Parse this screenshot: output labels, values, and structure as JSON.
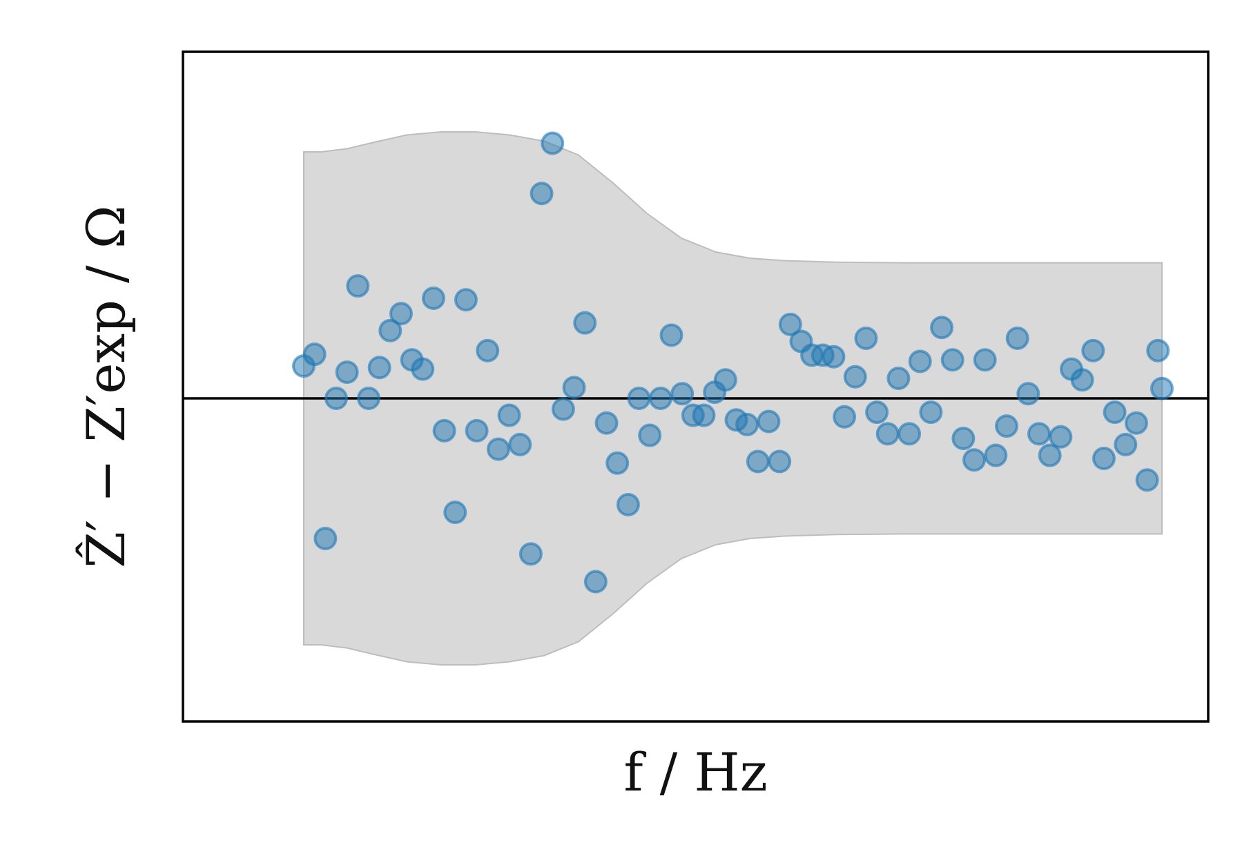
{
  "chart_data": {
    "type": "scatter",
    "xlabel": "f / Hz",
    "ylabel": "Ẑ′ − Z′exp / Ω",
    "axes_ticks_visible": false,
    "grid": false,
    "xlim": [
      0,
      100
    ],
    "ylim": [
      -1.0,
      1.0
    ],
    "zero_line": 0,
    "band": {
      "description_visible": false,
      "upper": [
        [
          0,
          0.8
        ],
        [
          2,
          0.8
        ],
        [
          5,
          0.81
        ],
        [
          8,
          0.83
        ],
        [
          12,
          0.855
        ],
        [
          16,
          0.865
        ],
        [
          20,
          0.865
        ],
        [
          24,
          0.855
        ],
        [
          28,
          0.835
        ],
        [
          32,
          0.79
        ],
        [
          36,
          0.7
        ],
        [
          40,
          0.6
        ],
        [
          44,
          0.52
        ],
        [
          48,
          0.475
        ],
        [
          52,
          0.455
        ],
        [
          56,
          0.447
        ],
        [
          62,
          0.442
        ],
        [
          70,
          0.44
        ],
        [
          80,
          0.44
        ],
        [
          90,
          0.44
        ],
        [
          100,
          0.44
        ]
      ],
      "lower": [
        [
          0,
          -0.8
        ],
        [
          2,
          -0.8
        ],
        [
          5,
          -0.81
        ],
        [
          8,
          -0.83
        ],
        [
          12,
          -0.855
        ],
        [
          16,
          -0.865
        ],
        [
          20,
          -0.865
        ],
        [
          24,
          -0.855
        ],
        [
          28,
          -0.835
        ],
        [
          32,
          -0.79
        ],
        [
          36,
          -0.7
        ],
        [
          40,
          -0.6
        ],
        [
          44,
          -0.52
        ],
        [
          48,
          -0.475
        ],
        [
          52,
          -0.455
        ],
        [
          56,
          -0.447
        ],
        [
          62,
          -0.442
        ],
        [
          70,
          -0.44
        ],
        [
          80,
          -0.44
        ],
        [
          90,
          -0.44
        ],
        [
          100,
          -0.44
        ]
      ]
    },
    "series": [
      {
        "color": "#1f77b4",
        "points": [
          [
            0,
            0.105
          ],
          [
            1.26,
            0.143
          ],
          [
            2.52,
            -0.455
          ],
          [
            3.78,
            0.0
          ],
          [
            5.04,
            0.085
          ],
          [
            6.3,
            0.365
          ],
          [
            7.56,
            0.0
          ],
          [
            8.82,
            0.1
          ],
          [
            10.08,
            0.22
          ],
          [
            11.34,
            0.275
          ],
          [
            12.6,
            0.125
          ],
          [
            13.86,
            0.095
          ],
          [
            15.12,
            0.325
          ],
          [
            16.38,
            -0.105
          ],
          [
            17.64,
            -0.37
          ],
          [
            18.9,
            0.32
          ],
          [
            20.16,
            -0.105
          ],
          [
            21.42,
            0.155
          ],
          [
            22.68,
            -0.165
          ],
          [
            23.94,
            -0.055
          ],
          [
            25.2,
            -0.15
          ],
          [
            26.46,
            -0.505
          ],
          [
            27.72,
            0.665
          ],
          [
            28.98,
            0.828
          ],
          [
            30.24,
            -0.035
          ],
          [
            31.5,
            0.035
          ],
          [
            32.76,
            0.245
          ],
          [
            34.02,
            -0.595
          ],
          [
            35.28,
            -0.08
          ],
          [
            36.54,
            -0.21
          ],
          [
            37.8,
            -0.345
          ],
          [
            39.06,
            0.0
          ],
          [
            40.32,
            -0.12
          ],
          [
            41.58,
            0.0
          ],
          [
            42.84,
            0.205
          ],
          [
            44.1,
            0.015
          ],
          [
            45.36,
            -0.055
          ],
          [
            46.62,
            -0.055
          ],
          [
            47.88,
            0.02
          ],
          [
            49.14,
            0.06
          ],
          [
            50.4,
            -0.07
          ],
          [
            51.66,
            -0.085
          ],
          [
            52.92,
            -0.205
          ],
          [
            54.18,
            -0.075
          ],
          [
            55.44,
            -0.205
          ],
          [
            56.7,
            0.24
          ],
          [
            57.96,
            0.185
          ],
          [
            59.22,
            0.14
          ],
          [
            60.48,
            0.14
          ],
          [
            61.74,
            0.135
          ],
          [
            63.0,
            -0.06
          ],
          [
            64.26,
            0.07
          ],
          [
            65.52,
            0.195
          ],
          [
            66.78,
            -0.045
          ],
          [
            68.04,
            -0.115
          ],
          [
            69.3,
            0.065
          ],
          [
            70.56,
            -0.115
          ],
          [
            71.82,
            0.12
          ],
          [
            73.08,
            -0.045
          ],
          [
            74.34,
            0.23
          ],
          [
            75.6,
            0.125
          ],
          [
            76.86,
            -0.13
          ],
          [
            78.12,
            -0.2
          ],
          [
            79.38,
            0.125
          ],
          [
            80.64,
            -0.185
          ],
          [
            81.9,
            -0.09
          ],
          [
            83.16,
            0.195
          ],
          [
            84.42,
            0.015
          ],
          [
            85.68,
            -0.115
          ],
          [
            86.94,
            -0.185
          ],
          [
            88.2,
            -0.125
          ],
          [
            89.46,
            0.095
          ],
          [
            90.72,
            0.06
          ],
          [
            91.98,
            0.155
          ],
          [
            93.24,
            -0.195
          ],
          [
            94.5,
            -0.045
          ],
          [
            95.76,
            -0.15
          ],
          [
            97.02,
            -0.08
          ],
          [
            98.28,
            -0.265
          ],
          [
            99.54,
            0.155
          ],
          [
            100,
            0.032
          ]
        ]
      }
    ]
  }
}
